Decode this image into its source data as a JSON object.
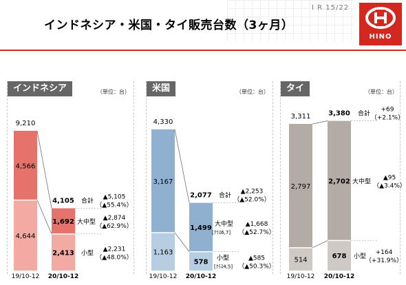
{
  "header": {
    "title": "インドネシア・米国・タイ販売台数（3ヶ月）",
    "page": "I R  15/22",
    "logo_text": "HINO"
  },
  "colors": {
    "brand_red": "#d3281f",
    "indonesia_dark": "#e5736b",
    "indonesia_light": "#f2aaa3",
    "us_dark": "#8fb0cf",
    "us_light": "#b6cde2",
    "thai_dark": "#b3aba6",
    "thai_light": "#cfc9c5",
    "connector": "#6e6e6e"
  },
  "panels": [
    {
      "title": "インドネシア",
      "unit": "（単位：台）"
    },
    {
      "title": "米国",
      "unit": "（単位：台）"
    },
    {
      "title": "タイ",
      "unit": "（単位：台）"
    }
  ],
  "chart_data": [
    {
      "type": "bar",
      "stacked": true,
      "title": "インドネシア",
      "categories": [
        "19/10-12",
        "20/10-12"
      ],
      "series": [
        {
          "name": "大中型",
          "values": [
            4566,
            1692
          ]
        },
        {
          "name": "小型",
          "values": [
            4644,
            2413
          ]
        }
      ],
      "totals": [
        9210,
        4105
      ],
      "ylim": [
        0,
        9500
      ],
      "annotations": [
        {
          "label": "合計",
          "change": "▲5,105",
          "pct": "（▲55.4%）"
        },
        {
          "label": "大中型",
          "change": "▲2,874",
          "pct": "（▲62.9%）"
        },
        {
          "label": "小型",
          "change": "▲2,231",
          "pct": "（▲48.0%）"
        }
      ],
      "labels": {
        "total_old": "9,210",
        "total_new": "4,105",
        "heavy_old": "4,566",
        "light_old": "4,644",
        "heavy_new": "1,692",
        "light_new": "2,413"
      }
    },
    {
      "type": "bar",
      "stacked": true,
      "title": "米国",
      "categories": [
        "19/10-12",
        "20/10-12"
      ],
      "series": [
        {
          "name": "大中型",
          "values": [
            3167,
            1499
          ]
        },
        {
          "name": "小型",
          "values": [
            1163,
            578
          ]
        }
      ],
      "totals": [
        4330,
        2077
      ],
      "ylim": [
        0,
        4530
      ],
      "annotations": [
        {
          "label": "合計",
          "change": "▲2,253",
          "pct": "（▲52.0%）"
        },
        {
          "label": "大中型",
          "sub": "[ｸﾗｽ6,7]",
          "change": "▲1,668",
          "pct": "（▲52.7%）"
        },
        {
          "label": "小型",
          "sub": "[ｸﾗｽ4,5]",
          "change": "▲585",
          "pct": "（▲50.3%）"
        }
      ],
      "labels": {
        "total_old": "4,330",
        "total_new": "2,077",
        "heavy_old": "3,167",
        "light_old": "1,163",
        "heavy_new": "1,499",
        "light_new": "578"
      }
    },
    {
      "type": "bar",
      "stacked": true,
      "title": "タイ",
      "categories": [
        "19/10-12",
        "20/10-12"
      ],
      "series": [
        {
          "name": "大中型",
          "values": [
            2797,
            2702
          ]
        },
        {
          "name": "小型",
          "values": [
            514,
            678
          ]
        }
      ],
      "totals": [
        3311,
        3380
      ],
      "ylim": [
        0,
        3430
      ],
      "annotations": [
        {
          "label": "合計",
          "change": "+69",
          "pct": "（+2.1%）"
        },
        {
          "label": "大中型",
          "change": "▲95",
          "pct": "（▲3.4%）"
        },
        {
          "label": "小型",
          "change": "+164",
          "pct": "（+31.9%）"
        }
      ],
      "labels": {
        "total_old": "3,311",
        "total_new": "3,380",
        "heavy_old": "2,797",
        "light_old": "514",
        "heavy_new": "2,702",
        "light_new": "678"
      }
    }
  ]
}
